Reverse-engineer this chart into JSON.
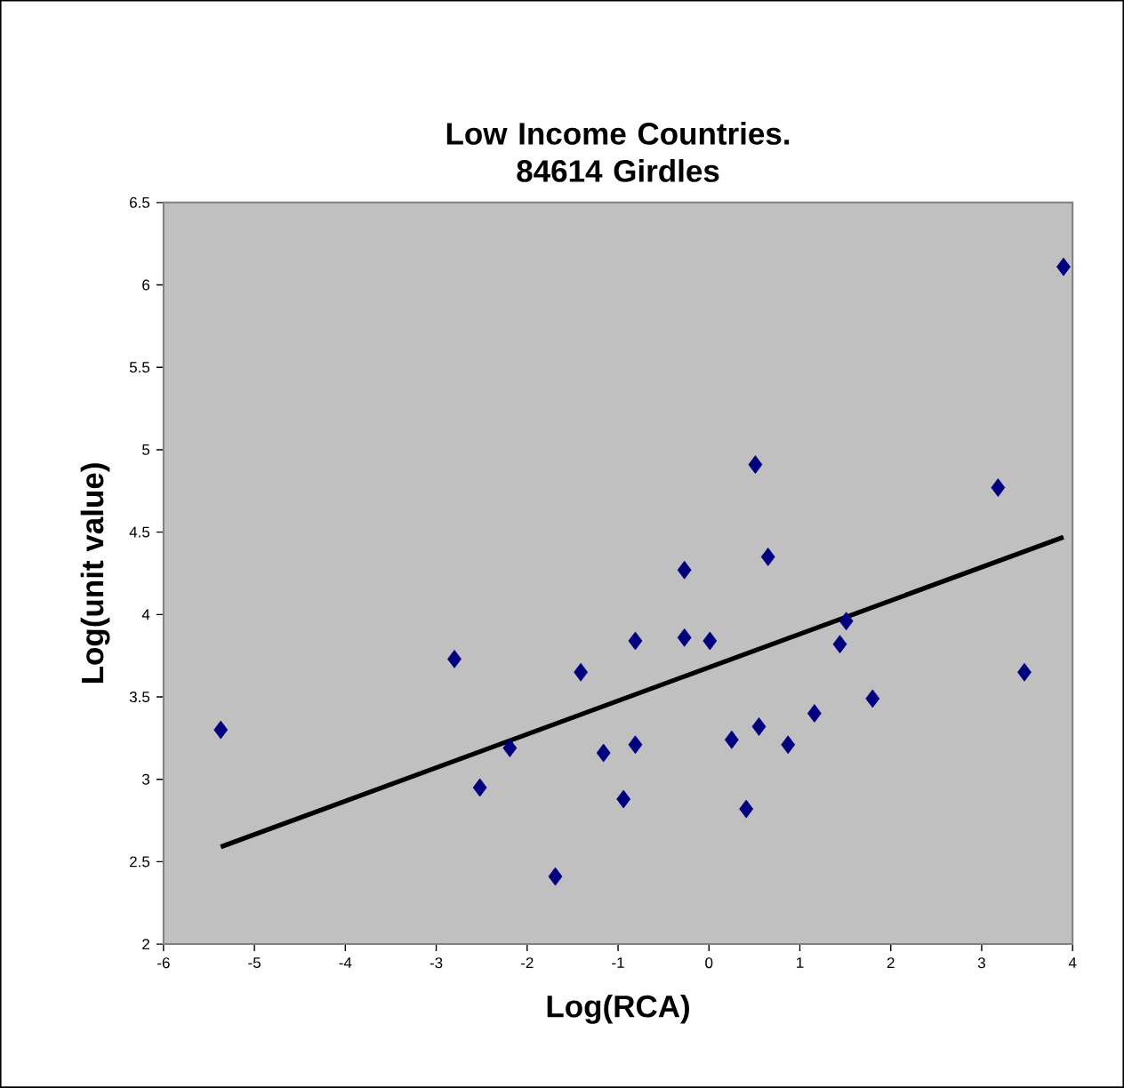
{
  "chart_data": {
    "type": "scatter",
    "title": "Low Income Countries. 84614 Girdles",
    "xlabel": "Log(RCA)",
    "ylabel": "Log(unit value)",
    "xlim": [
      -6,
      4
    ],
    "xticks": [
      -6,
      -5,
      -4,
      -3,
      -2,
      -1,
      0,
      1,
      2,
      3,
      4
    ],
    "ylim": [
      2,
      6.5
    ],
    "yticks": [
      2,
      2.5,
      3,
      3.5,
      4,
      4.5,
      5,
      5.5,
      6,
      6.5
    ],
    "legend": false,
    "marker": "diamond",
    "series": [
      {
        "color": "#000080",
        "x": [
          -5.37,
          -2.8,
          -2.52,
          -2.19,
          -1.69,
          -1.41,
          -1.16,
          -0.94,
          -0.81,
          -0.81,
          -0.27,
          0.01,
          0.25,
          0.41,
          0.55,
          0.87,
          1.16,
          1.44,
          1.51,
          1.8,
          3.47,
          3.9,
          0.51,
          3.18,
          -0.27,
          0.65
        ],
        "values": [
          3.3,
          3.73,
          2.95,
          3.19,
          2.41,
          3.65,
          3.16,
          2.88,
          3.84,
          3.21,
          3.86,
          3.84,
          3.24,
          2.82,
          3.32,
          3.21,
          3.4,
          3.82,
          3.96,
          3.49,
          3.65,
          6.11,
          4.91,
          4.77,
          4.27,
          4.35
        ]
      },
      {
        "type": "line",
        "color": "#000000",
        "marker": "none",
        "line_style": "solid",
        "x": [
          -5.37,
          3.9
        ],
        "values": [
          2.59,
          4.47
        ]
      }
    ]
  }
}
